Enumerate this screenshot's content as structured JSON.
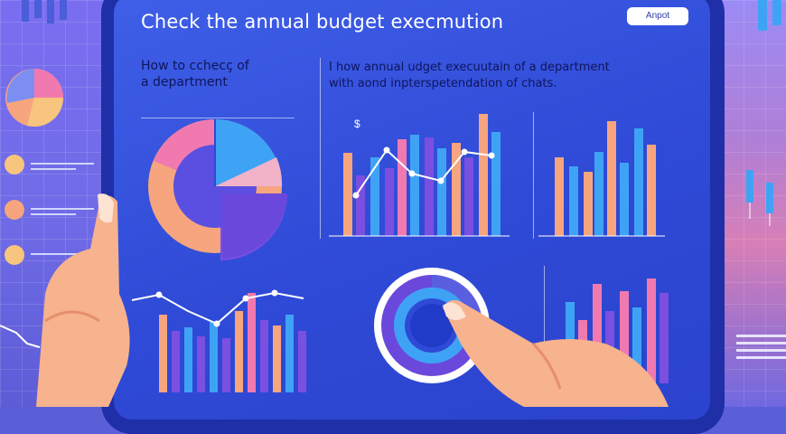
{
  "screen": {
    "title": "Check the annual budget execmution",
    "report_button": "Anpot"
  },
  "panels": {
    "left_heading": [
      "How to cchecç of",
      "a department"
    ],
    "right_heading": [
      "I how annual  udget  execuutain of a department",
      "with  aond inpterspetendation of chats."
    ],
    "currency_mark": "$"
  },
  "colors": {
    "screen": "#2f4ad6",
    "bezel": "#1f2fa8",
    "peach": "#f6a57e",
    "blue": "#3fa3f5",
    "violet": "#7b4fe0",
    "pink": "#f07ab0",
    "skin": "#f7b28e"
  },
  "icons": [
    "pie-chart-icon",
    "donut-dial-icon",
    "nav-arrow-icon",
    "pointing-hand-icon"
  ]
}
